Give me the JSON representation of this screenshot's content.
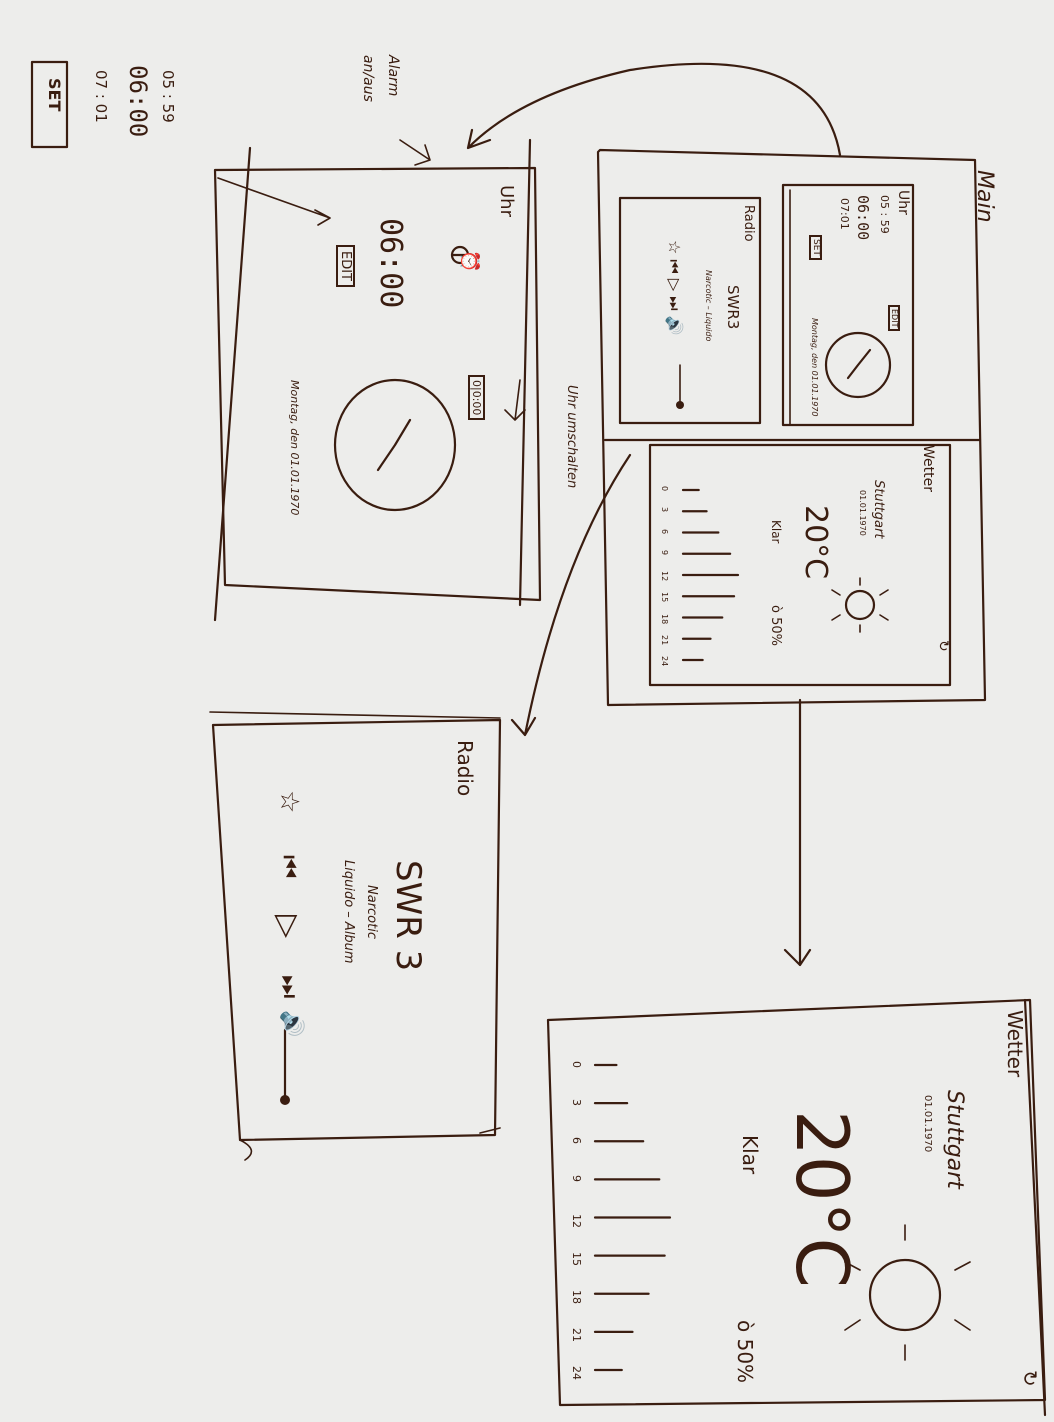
{
  "note": {
    "alarm_label": "Alarm",
    "alarm_time_1": "05 : 59",
    "alarm_time_2": "06:00",
    "alarm_time_3": "07 : 01",
    "set_button": "SET",
    "alarm_side_label_1": "Alarm",
    "alarm_side_label_2": "an/aus"
  },
  "main": {
    "title": "Main",
    "clock_card": {
      "title": "Uhr",
      "times": [
        "05 : 59",
        "06:00",
        "07:01"
      ],
      "set": "SET",
      "edit": "EDIT",
      "date": "Montag, den 01.01.1970"
    },
    "radio_card": {
      "title": "Radio",
      "station": "SWR3",
      "track": "Narcotic – Liquido"
    },
    "weather_card": {
      "title": "Wetter",
      "city": "Stuttgart",
      "date": "01.01.1970",
      "temp": "20°C",
      "condition": "Klar",
      "rain": "ò 50%",
      "hours": [
        "0",
        "3",
        "6",
        "9",
        "12",
        "15",
        "18",
        "21",
        "24"
      ]
    }
  },
  "clock_screen": {
    "title": "Uhr",
    "time": "06:00",
    "edit": "EDIT",
    "toggle": "0|0:00",
    "date": "Montag, den 01.01.1970",
    "annotation": "Uhr umschalten"
  },
  "radio_screen": {
    "title": "Radio",
    "station": "SWR 3",
    "track": "Narcotic",
    "artist": "Liquido – Album"
  },
  "weather_screen": {
    "title": "Wetter",
    "city": "Stuttgart",
    "date": "01.01.1970",
    "temp": "20°C",
    "condition": "Klar",
    "rain": "ò 50%",
    "hours": [
      "0",
      "3",
      "6",
      "9",
      "12",
      "15",
      "18",
      "21",
      "24"
    ]
  },
  "chart_data": [
    {
      "type": "bar",
      "title": "Wetter",
      "categories": [
        "0",
        "3",
        "6",
        "9",
        "12",
        "15",
        "18",
        "21",
        "24"
      ],
      "values": [
        4,
        6,
        9,
        12,
        14,
        13,
        10,
        7,
        5
      ]
    }
  ]
}
